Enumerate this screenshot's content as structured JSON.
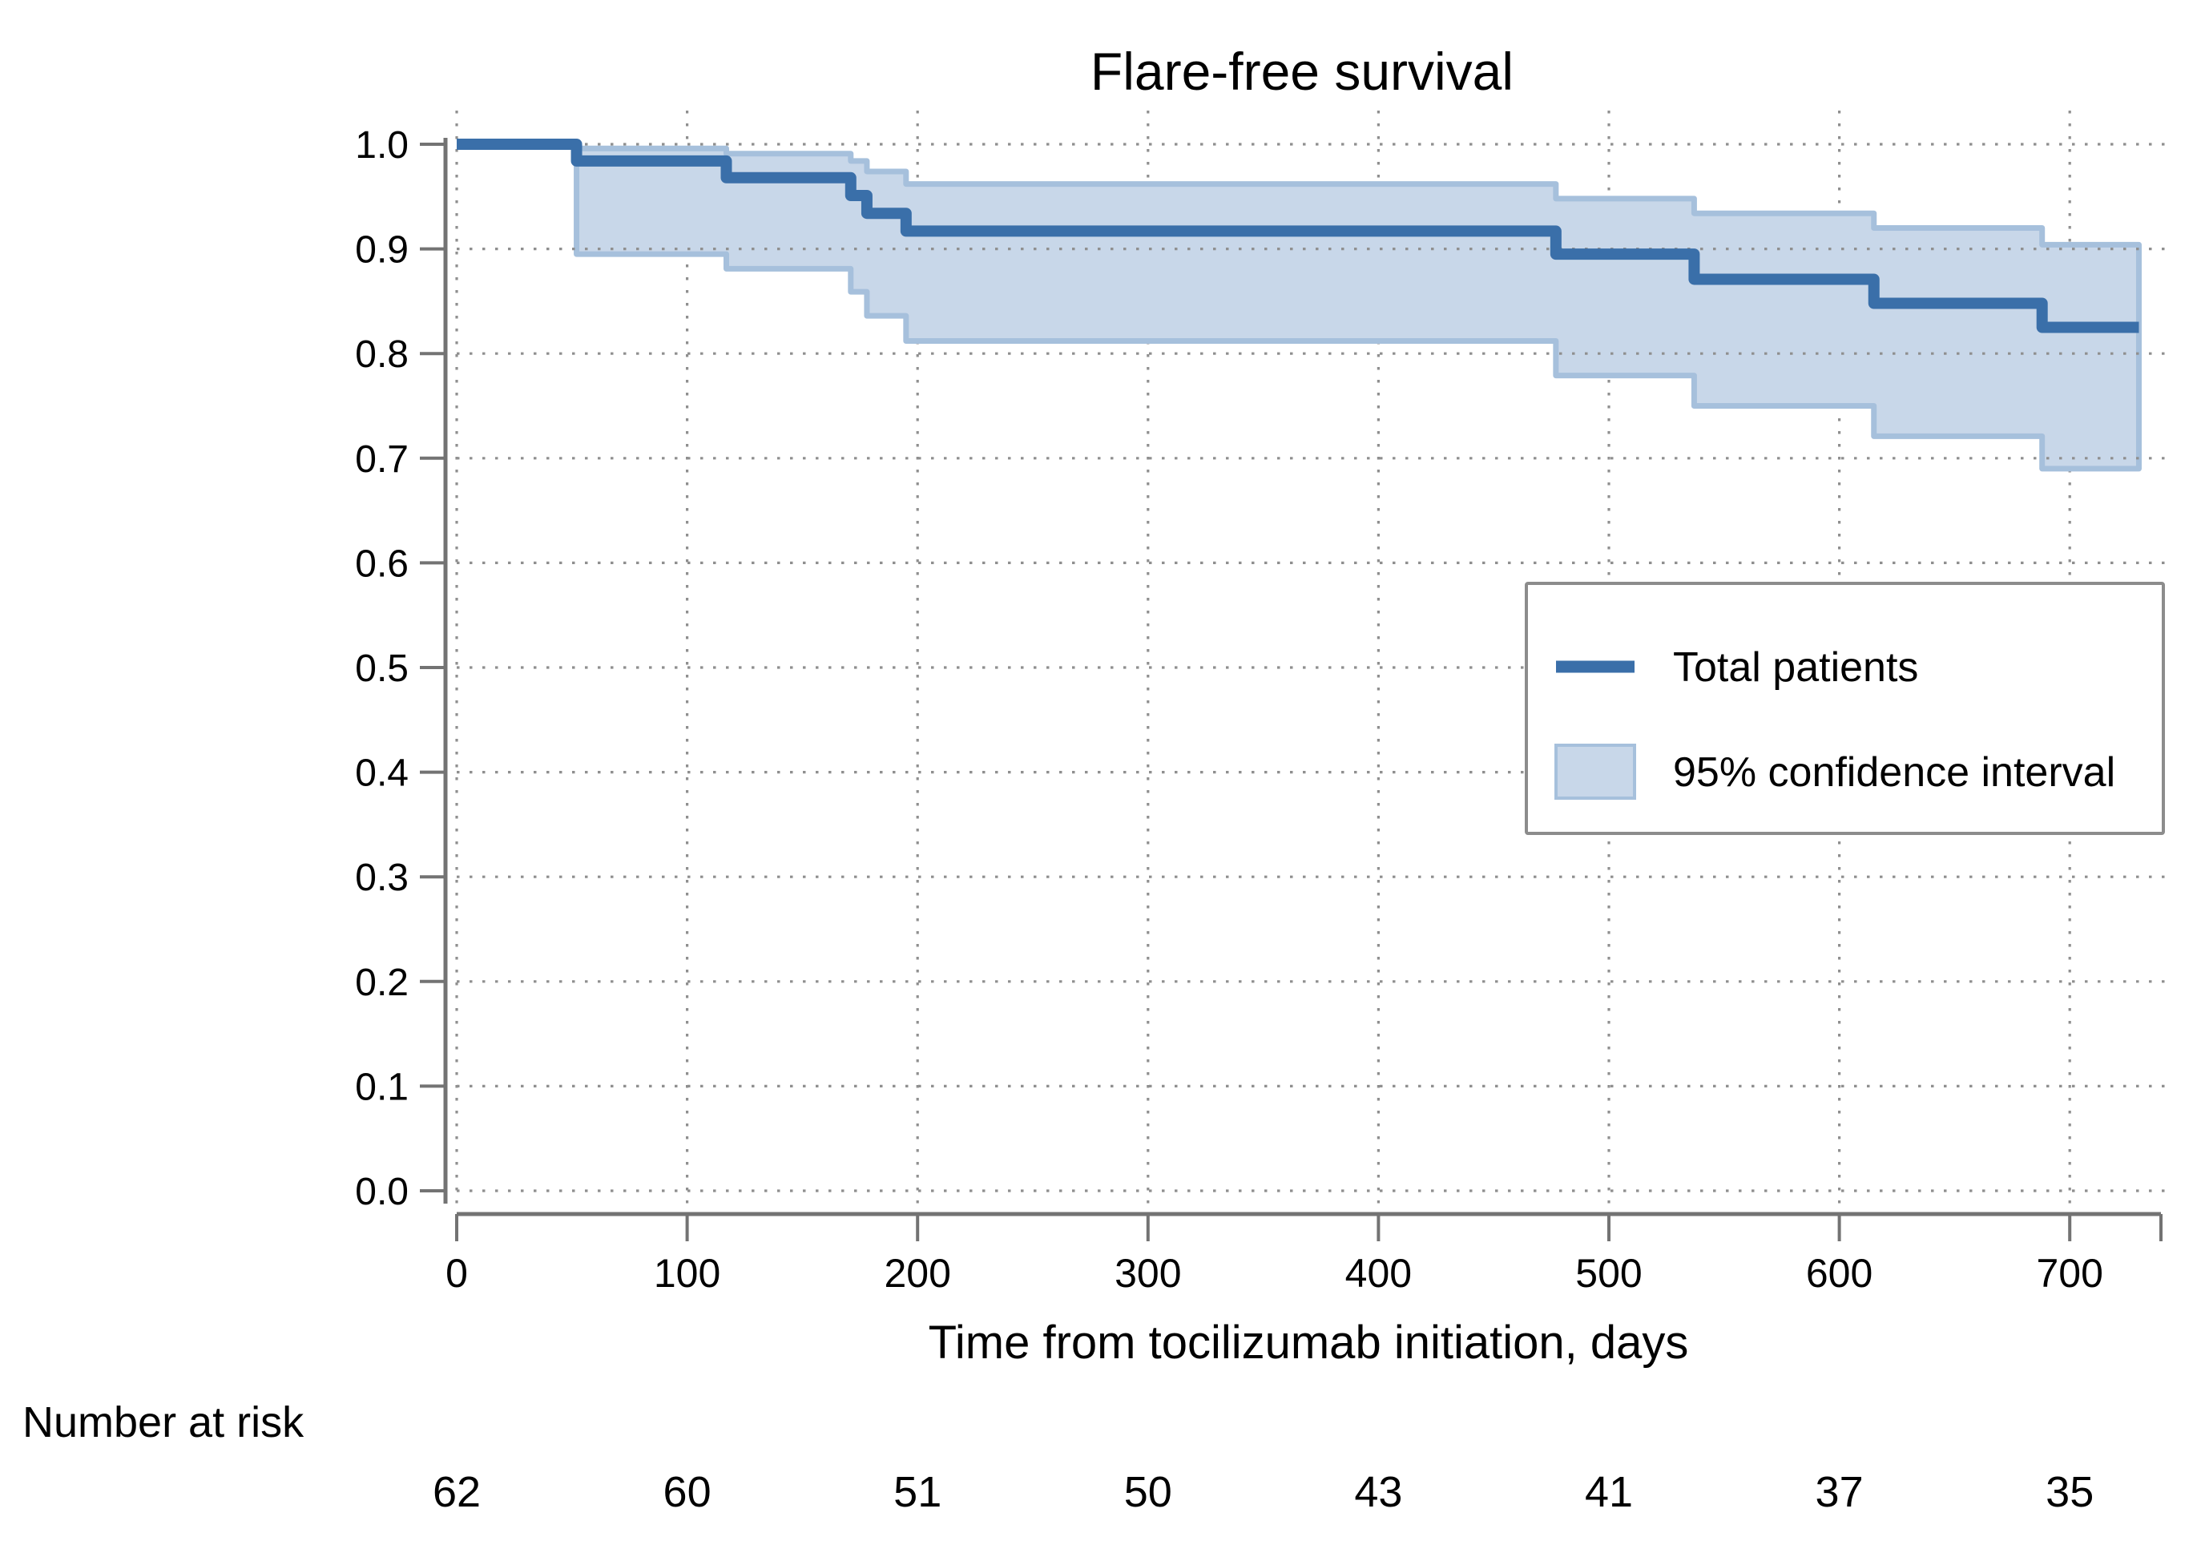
{
  "colors": {
    "line": "#3a6fa9",
    "band_fill": "#c8d7e9",
    "band_stroke": "#a6c0dc",
    "axis": "#737373",
    "grid": "#8f8f8f",
    "legend_border": "#8c8c8c",
    "text": "#000000"
  },
  "chart_data": {
    "type": "line",
    "subtype": "kaplan-meier-step",
    "title": "Flare-free survival",
    "xlabel": "Time from tocilizumab initiation, days",
    "ylabel": "",
    "xlim": [
      0,
      730
    ],
    "ylim": [
      0.0,
      1.0
    ],
    "x_ticks": [
      0,
      100,
      200,
      300,
      400,
      500,
      600,
      700
    ],
    "y_tick_labels": [
      "1.0",
      "0.9",
      "0.8",
      "0.7",
      "0.6",
      "0.5",
      "0.4",
      "0.3",
      "0.2",
      "0.1",
      "0.0"
    ],
    "grid": "dotted",
    "legend_position": "middle-right",
    "series": [
      {
        "name": "Total patients",
        "steps": [
          [
            0,
            1.0
          ],
          [
            52,
            0.984
          ],
          [
            117,
            0.968
          ],
          [
            171,
            0.951
          ],
          [
            178,
            0.934
          ],
          [
            195,
            0.917
          ],
          [
            477,
            0.895
          ],
          [
            537,
            0.871
          ],
          [
            615,
            0.848
          ],
          [
            688,
            0.825
          ]
        ],
        "end_time": 730
      }
    ],
    "confidence_interval": {
      "name": "95% confidence interval",
      "segments": [
        {
          "t0": 52,
          "t1": 117,
          "lower": 0.895,
          "upper": 0.996
        },
        {
          "t0": 117,
          "t1": 171,
          "lower": 0.881,
          "upper": 0.991
        },
        {
          "t0": 171,
          "t1": 178,
          "lower": 0.859,
          "upper": 0.984
        },
        {
          "t0": 178,
          "t1": 195,
          "lower": 0.836,
          "upper": 0.974
        },
        {
          "t0": 195,
          "t1": 477,
          "lower": 0.812,
          "upper": 0.962
        },
        {
          "t0": 477,
          "t1": 537,
          "lower": 0.779,
          "upper": 0.948
        },
        {
          "t0": 537,
          "t1": 615,
          "lower": 0.75,
          "upper": 0.934
        },
        {
          "t0": 615,
          "t1": 688,
          "lower": 0.721,
          "upper": 0.92
        },
        {
          "t0": 688,
          "t1": 730,
          "lower": 0.69,
          "upper": 0.904
        }
      ]
    },
    "number_at_risk": {
      "label": "Number at risk",
      "times": [
        0,
        100,
        200,
        300,
        400,
        500,
        600,
        700
      ],
      "values": [
        62,
        60,
        51,
        50,
        43,
        41,
        37,
        35
      ]
    }
  }
}
